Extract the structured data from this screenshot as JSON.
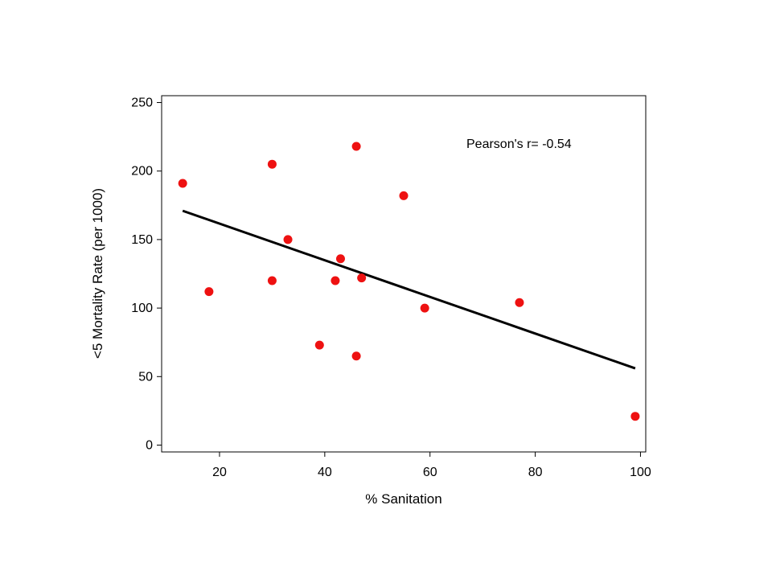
{
  "chart_data": {
    "type": "scatter",
    "xlabel": "% Sanitation",
    "ylabel": "<5 Mortality Rate (per 1000)",
    "xlim": [
      9,
      101
    ],
    "ylim": [
      -5,
      255
    ],
    "xticks": [
      20,
      40,
      60,
      80,
      100
    ],
    "yticks": [
      0,
      50,
      100,
      150,
      200,
      250
    ],
    "grid": false,
    "legend": "none",
    "point_color": "#ee1111",
    "line_color": "#000000",
    "annotation": "Pearson's r= -0.54",
    "points": [
      {
        "x": 13,
        "y": 191
      },
      {
        "x": 18,
        "y": 112
      },
      {
        "x": 30,
        "y": 205
      },
      {
        "x": 30,
        "y": 120
      },
      {
        "x": 33,
        "y": 150
      },
      {
        "x": 39,
        "y": 73
      },
      {
        "x": 42,
        "y": 120
      },
      {
        "x": 43,
        "y": 136
      },
      {
        "x": 46,
        "y": 218
      },
      {
        "x": 46,
        "y": 65
      },
      {
        "x": 47,
        "y": 122
      },
      {
        "x": 55,
        "y": 182
      },
      {
        "x": 59,
        "y": 100
      },
      {
        "x": 77,
        "y": 104
      },
      {
        "x": 99,
        "y": 21
      }
    ],
    "trend_line": {
      "x": [
        13,
        99
      ],
      "y": [
        171,
        56
      ]
    }
  }
}
